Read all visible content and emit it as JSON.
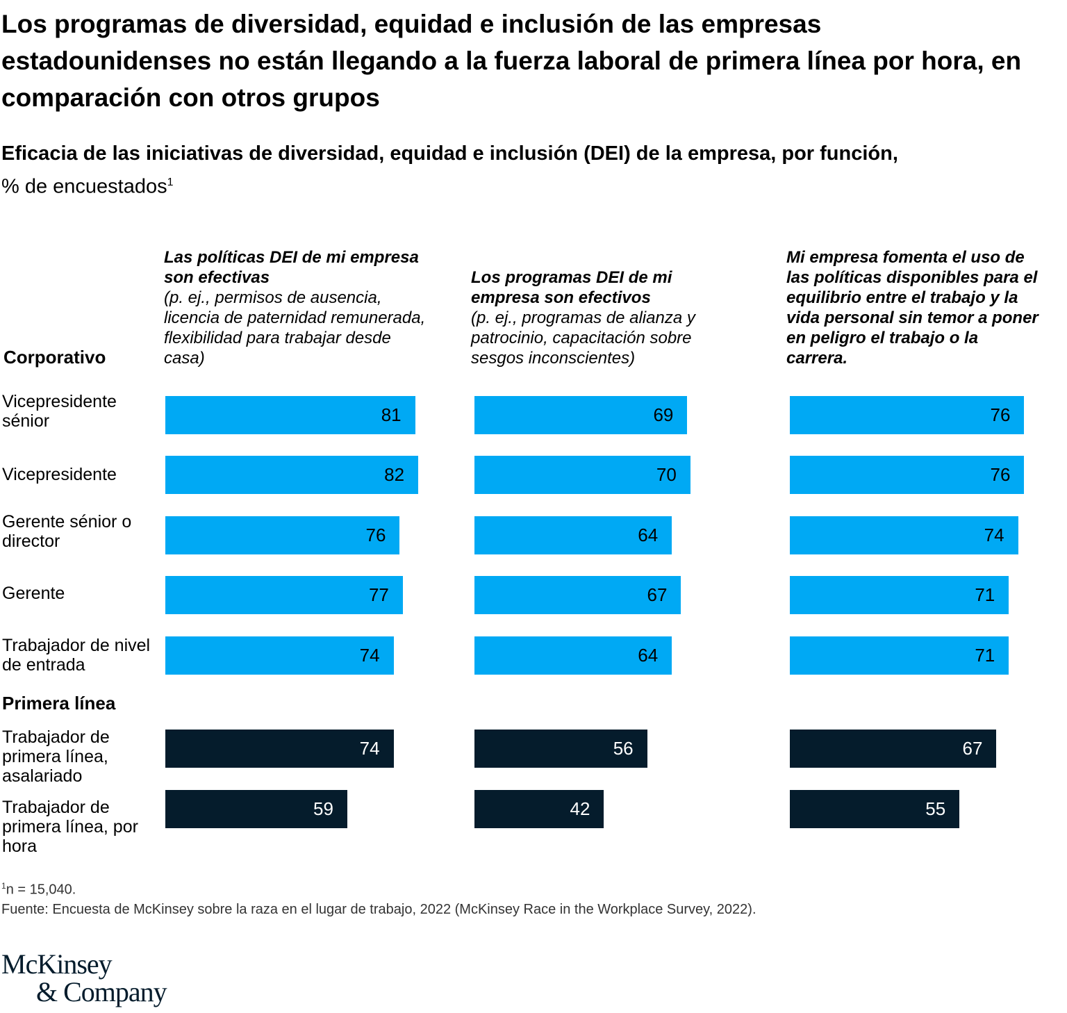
{
  "title": "Los programas de diversidad, equidad e inclusión de las empresas estadounidenses no están llegando a la fuerza laboral de primera línea por hora, en comparación con otros grupos",
  "colors": {
    "corporate": "#00a9f4",
    "frontline": "#051c2c"
  },
  "chart_data": {
    "type": "bar",
    "title": "Eficacia de las iniciativas de diversidad, equidad e inclusión (DEI) de la empresa, por función,",
    "subtitle_unit": "% de encuestados",
    "subtitle_sup": "1",
    "groups": [
      {
        "label": "Corporativo",
        "rows": [
          0,
          1,
          2,
          3,
          4
        ]
      },
      {
        "label": "Primera línea",
        "rows": [
          5,
          6
        ]
      }
    ],
    "categories": [
      "Vicepresidente sénior",
      "Vicepresidente",
      "Gerente sénior o director",
      "Gerente",
      "Trabajador de nivel de entrada",
      "Trabajador de primera línea, asalariado",
      "Trabajador de primera línea, por hora"
    ],
    "series": [
      {
        "name_bold": "Las políticas DEI de mi empresa son efectivas",
        "name_note": "(p. ej., permisos de ausencia, licencia de paternidad remunerada, flexibilidad para trabajar desde casa)",
        "values": [
          81,
          82,
          76,
          77,
          74,
          74,
          59
        ]
      },
      {
        "name_bold": "Los programas DEI de mi empresa son efectivos",
        "name_note": "(p. ej., programas de alianza y patrocinio, capacitación sobre sesgos inconscientes)",
        "values": [
          69,
          70,
          64,
          67,
          64,
          56,
          42
        ]
      },
      {
        "name_bold": "Mi empresa fomenta el uso de las políticas disponibles para el equilibrio entre el trabajo y la vida personal sin temor a poner en peligro el trabajo o la carrera.",
        "name_note": "",
        "values": [
          76,
          76,
          74,
          71,
          71,
          67,
          55
        ]
      }
    ],
    "xlim": [
      0,
      100
    ]
  },
  "footnote": "n = 15,040.",
  "footnote_mark": "1",
  "source": "Fuente: Encuesta de McKinsey sobre la raza en el lugar de trabajo, 2022 (McKinsey Race in the Workplace Survey, 2022).",
  "logo": "McKinsey & Company"
}
